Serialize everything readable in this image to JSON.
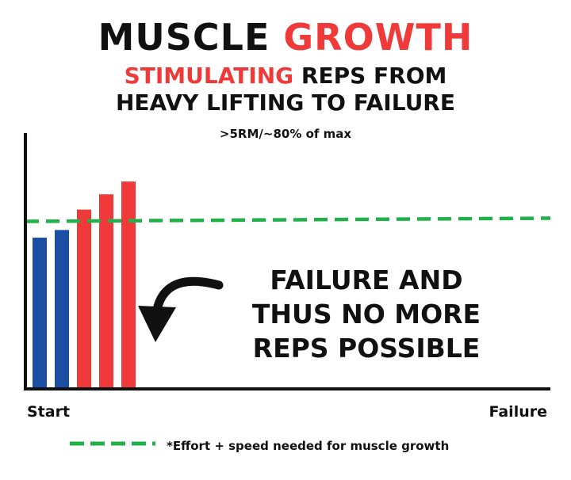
{
  "title": {
    "part1": "MUSCLE ",
    "part2": "GROWTH"
  },
  "subtitle": {
    "line1_accent": "STIMULATING",
    "line1_rest": " REPS FROM",
    "line2": "HEAVY LIFTING TO FAILURE"
  },
  "note": ">5RM/~80% of max",
  "callout": [
    "FAILURE AND",
    "THUS NO MORE",
    "REPS POSSIBLE"
  ],
  "colors": {
    "accent": "#f03a3a",
    "blue_bar": "#1a4fa3",
    "red_bar": "#f03a3a",
    "threshold": "#22b04b",
    "text": "#111111"
  },
  "chart_data": {
    "type": "bar",
    "xlabel_start": "Start",
    "xlabel_end": "Failure",
    "threshold": 0.66,
    "threshold_label": "*Effort + speed needed for muscle growth",
    "series": [
      {
        "values": [
          0.59,
          0.62
        ],
        "color": "#1a4fa3"
      },
      {
        "values": [
          0.7,
          0.76,
          0.81
        ],
        "color": "#f03a3a"
      }
    ],
    "values": [
      0.59,
      0.62,
      0.7,
      0.76,
      0.81
    ],
    "bar_colors": [
      "#1a4fa3",
      "#1a4fa3",
      "#f03a3a",
      "#f03a3a",
      "#f03a3a"
    ],
    "ylim": [
      0,
      1
    ]
  }
}
